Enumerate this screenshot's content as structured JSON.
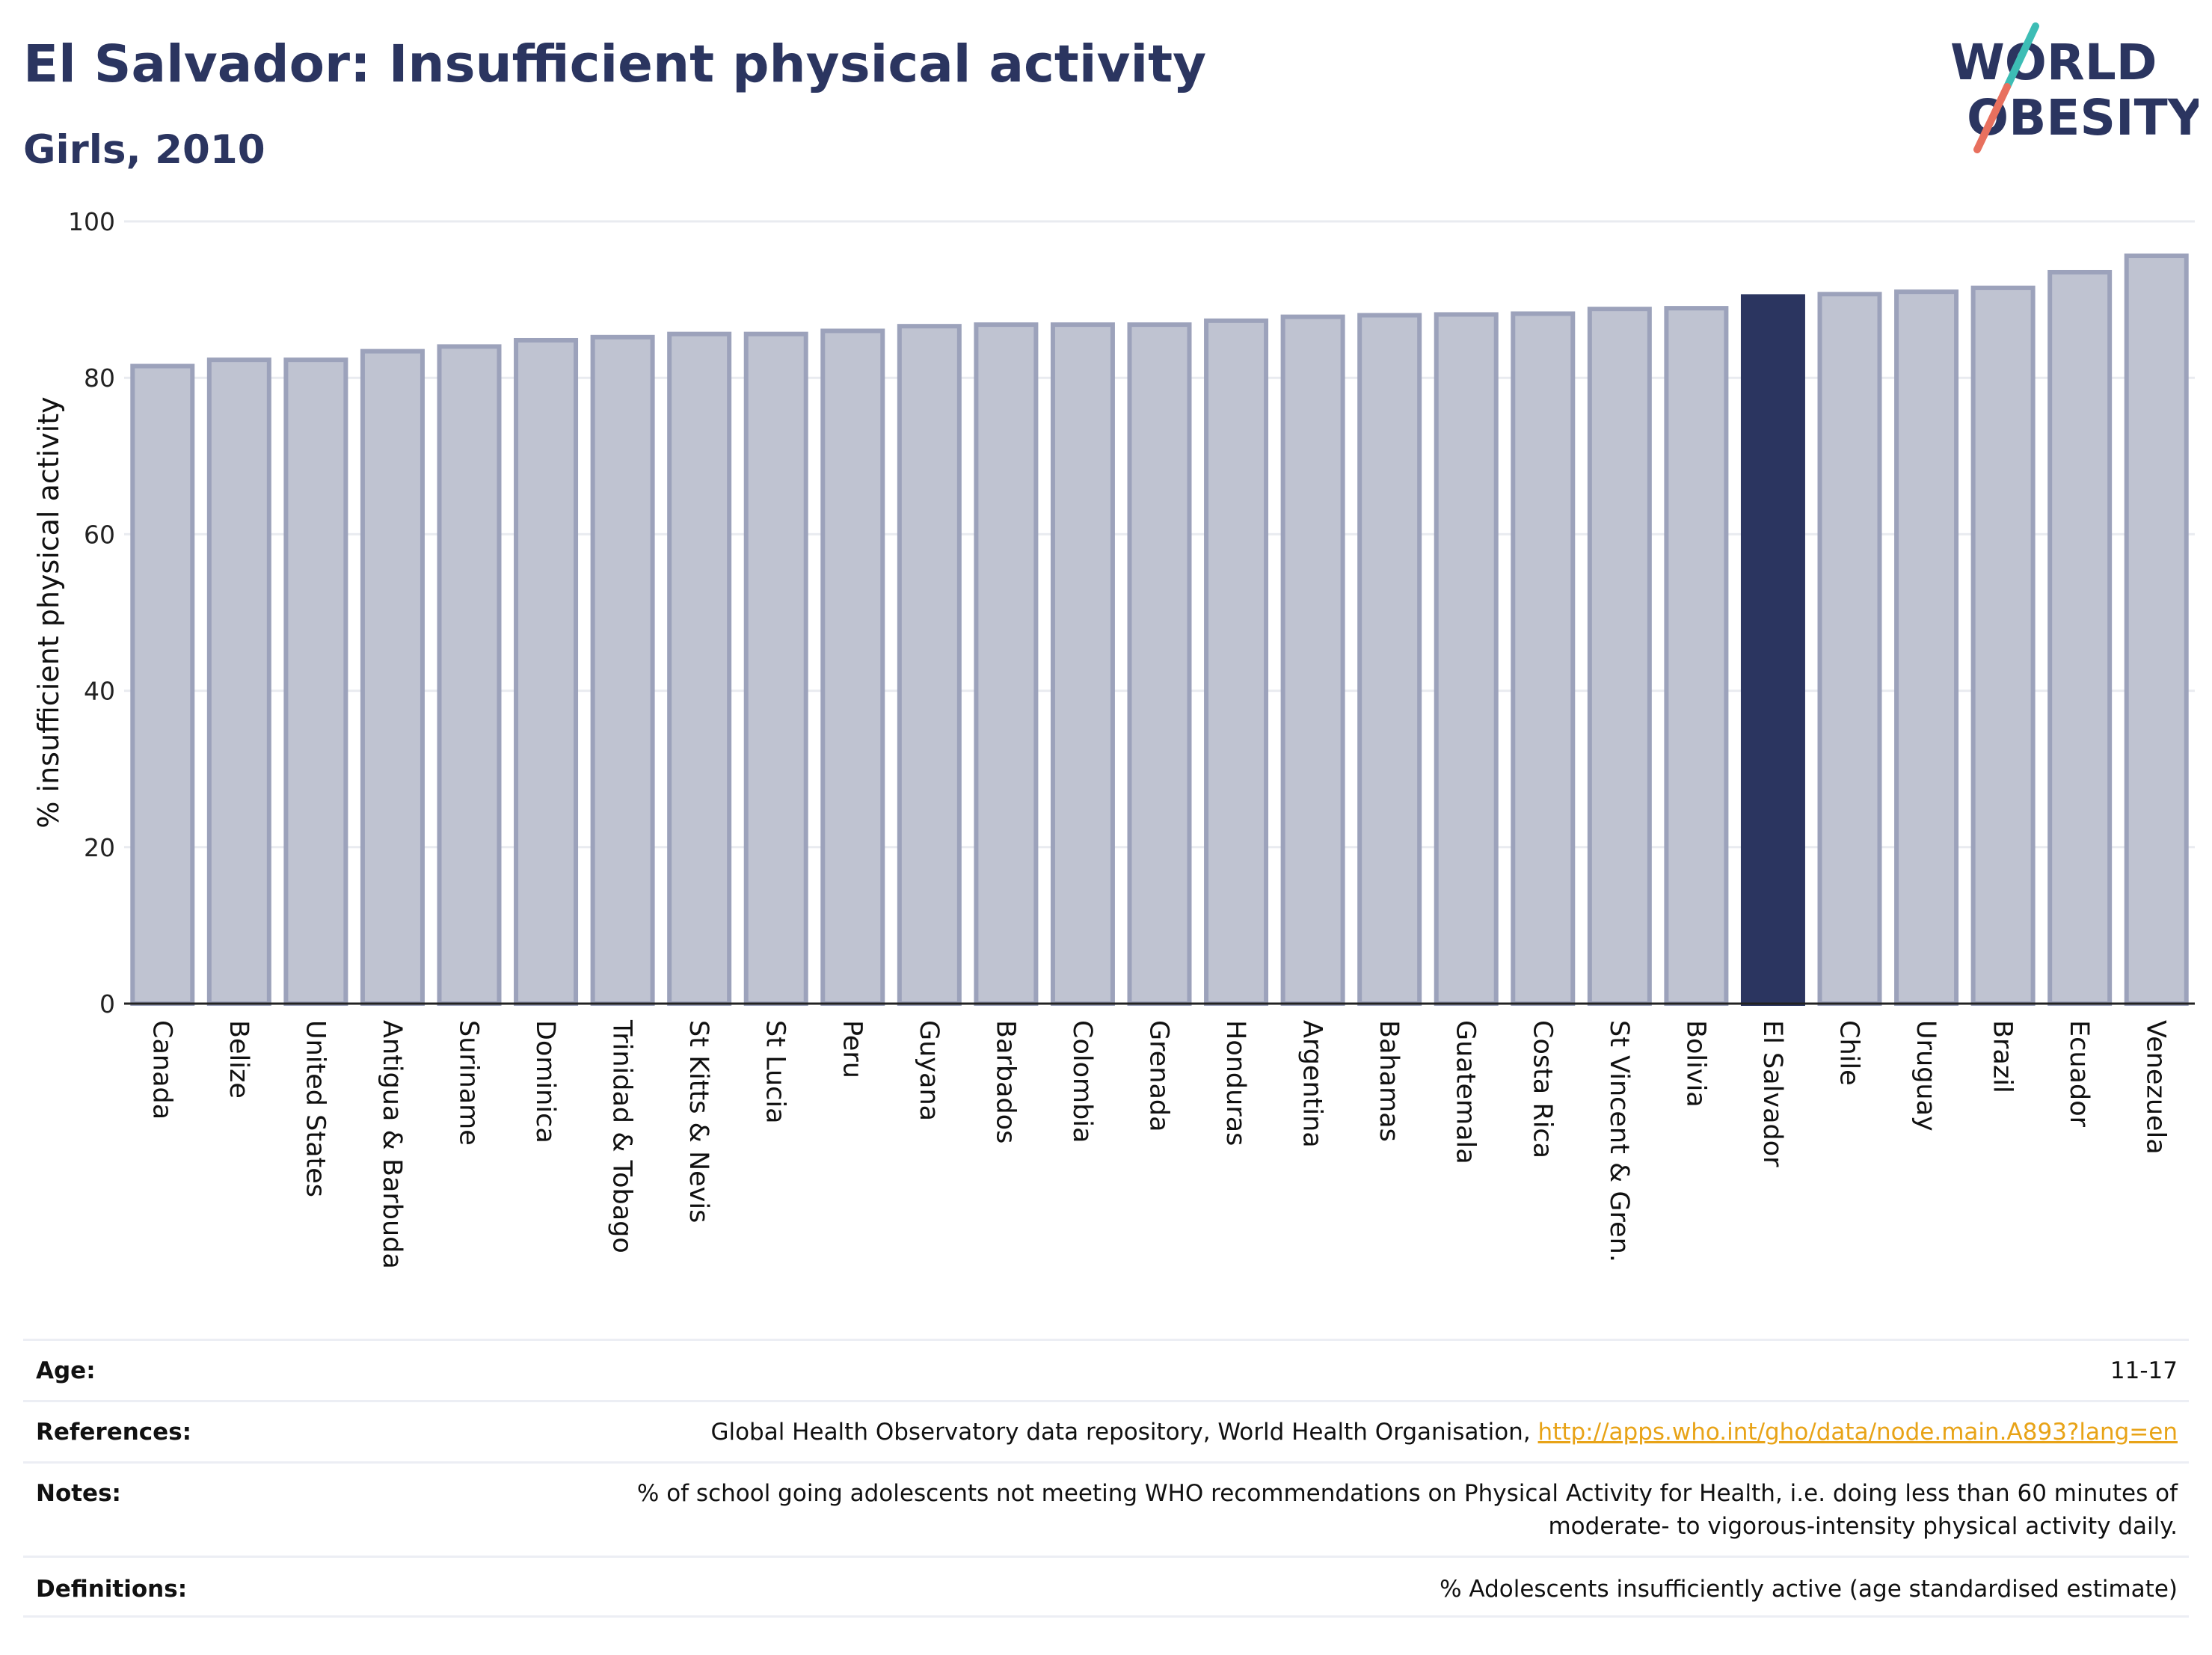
{
  "header": {
    "title": "El Salvador: Insufficient physical activity",
    "subtitle": "Girls, 2010"
  },
  "logo": {
    "line1": "WORLD",
    "line2": "OBESITY",
    "colors": {
      "text": "#2b3560",
      "slash_teal": "#3dbdb5",
      "slash_coral": "#e8705e"
    }
  },
  "chart_data": {
    "type": "bar",
    "ylabel": "% insufficient physical activity",
    "ylim": [
      0,
      100
    ],
    "yticks": [
      0,
      20,
      40,
      60,
      80,
      100
    ],
    "grid": true,
    "categories": [
      "Canada",
      "Belize",
      "United States",
      "Antigua & Barbuda",
      "Suriname",
      "Dominica",
      "Trinidad & Tobago",
      "St Kitts & Nevis",
      "St Lucia",
      "Peru",
      "Guyana",
      "Barbados",
      "Colombia",
      "Grenada",
      "Honduras",
      "Argentina",
      "Bahamas",
      "Guatemala",
      "Costa Rica",
      "St Vincent & Gren.",
      "Bolivia",
      "El Salvador",
      "Chile",
      "Uruguay",
      "Brazil",
      "Ecuador",
      "Venezuela"
    ],
    "values": [
      81.5,
      82.3,
      82.3,
      83.4,
      84.0,
      84.8,
      85.2,
      85.6,
      85.6,
      86.0,
      86.6,
      86.8,
      86.8,
      86.8,
      87.3,
      87.8,
      88.0,
      88.1,
      88.2,
      88.8,
      88.9,
      90.4,
      90.7,
      91.0,
      91.5,
      93.5,
      95.6
    ],
    "highlight": "El Salvador",
    "colors": {
      "bar": "#bfc3d1",
      "bar_border": "#9ca2bb",
      "highlight": "#2b3560"
    }
  },
  "meta": {
    "age_label": "Age:",
    "age_value": "11-17",
    "references_label": "References:",
    "references_text": "Global Health Observatory data repository, World Health Organisation, ",
    "references_link": "http://apps.who.int/gho/data/node.main.A893?lang=en",
    "notes_label": "Notes:",
    "notes_line1": "% of school going adolescents not meeting WHO recommendations on Physical Activity for Health, i.e. doing less than 60 minutes of",
    "notes_line2": "moderate- to vigorous-intensity physical activity daily.",
    "definitions_label": "Definitions:",
    "definitions_value": "% Adolescents insufficiently active (age standardised estimate)"
  }
}
